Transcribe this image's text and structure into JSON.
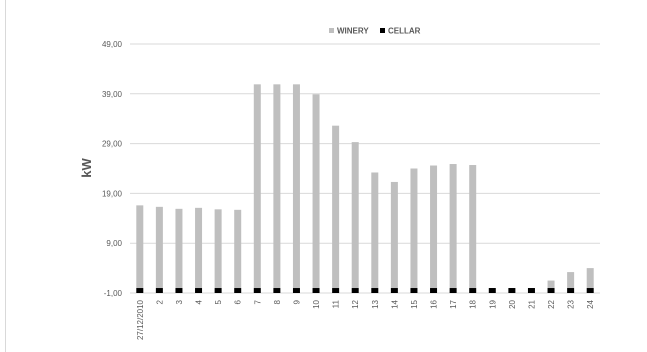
{
  "chart_data": {
    "type": "bar",
    "stacked": true,
    "title": "",
    "xlabel": "",
    "ylabel": "kW",
    "ylim": [
      -1,
      49
    ],
    "yticks": [
      "49,00",
      "39,00",
      "29,00",
      "19,00",
      "9,00",
      "-1,00"
    ],
    "grid": true,
    "legend_position": "top",
    "categories": [
      "27/12/2010",
      "2",
      "3",
      "4",
      "5",
      "6",
      "7",
      "8",
      "9",
      "10",
      "11",
      "12",
      "13",
      "14",
      "15",
      "16",
      "17",
      "18",
      "19",
      "20",
      "21",
      "22",
      "23",
      "24"
    ],
    "series": [
      {
        "name": "CELLAR",
        "color": "#000000",
        "values": [
          1,
          1,
          1,
          1,
          1,
          1,
          1,
          1,
          1,
          1,
          1,
          1,
          1,
          1,
          1,
          1,
          1,
          1,
          1,
          1,
          1,
          1,
          1,
          1
        ]
      },
      {
        "name": "WINERY",
        "color": "#bfbfbf",
        "values": [
          16.6,
          16.3,
          15.9,
          16.1,
          15.8,
          15.7,
          40.9,
          40.9,
          40.9,
          38.9,
          32.6,
          29.3,
          23.2,
          21.3,
          24.0,
          24.6,
          24.9,
          24.7,
          0,
          0,
          0,
          1.5,
          3.2,
          4.0
        ]
      }
    ]
  }
}
